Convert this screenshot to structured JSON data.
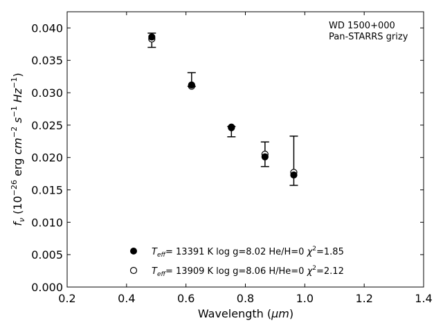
{
  "chart_data": {
    "type": "scatter",
    "xlabel_text": "Wavelength (",
    "xlabel_unit": "μm",
    "xlabel_close": ")",
    "ylabel_prefix": "f",
    "ylabel_sub": "ν",
    "ylabel_mid": " (10",
    "ylabel_exp1": "−26",
    "ylabel_mid2": " erg ",
    "ylabel_cm": "cm",
    "ylabel_exp2": "−2",
    "ylabel_s": " s",
    "ylabel_exp3": "−1",
    "ylabel_hz": " Hz",
    "ylabel_exp4": "−1",
    "ylabel_close": ")",
    "xlim": [
      0.2,
      1.4
    ],
    "ylim": [
      0.0,
      0.0425
    ],
    "xticks": [
      "0.2",
      "0.4",
      "0.6",
      "0.8",
      "1.0",
      "1.2",
      "1.4"
    ],
    "yticks": [
      "0.000",
      "0.005",
      "0.010",
      "0.015",
      "0.020",
      "0.025",
      "0.030",
      "0.035",
      "0.040"
    ],
    "annotation": [
      "WD 1500+000",
      "Pan-STARRS grizy"
    ],
    "observed": {
      "x": [
        0.485,
        0.619,
        0.753,
        0.866,
        0.963
      ],
      "y": [
        0.0381,
        0.0313,
        0.0243,
        0.0205,
        0.0195
      ],
      "yerr_low": [
        0.0011,
        0.0003,
        0.0011,
        0.0019,
        0.0038
      ],
      "yerr_high": [
        0.0011,
        0.0018,
        0.0005,
        0.0019,
        0.0038
      ]
    },
    "series": [
      {
        "name_T": "T",
        "name_Tsub": "eff",
        "name_rest": "= 13391 K  log g=8.02  He/H=0  ",
        "name_chi": "χ",
        "name_chi_sup": "2",
        "name_chi_val": "=1.85",
        "marker": "filled",
        "x": [
          0.485,
          0.619,
          0.753,
          0.866,
          0.963
        ],
        "y": [
          0.0386,
          0.0312,
          0.0246,
          0.0201,
          0.0173
        ]
      },
      {
        "name_T": "T",
        "name_Tsub": "eff",
        "name_rest": "= 13909 K  log g=8.06  H/He=0  ",
        "name_chi": "χ",
        "name_chi_sup": "2",
        "name_chi_val": "=2.12",
        "marker": "open",
        "x": [
          0.485,
          0.619,
          0.753,
          0.866,
          0.963
        ],
        "y": [
          0.0383,
          0.031,
          0.0247,
          0.0205,
          0.0177
        ]
      }
    ]
  }
}
